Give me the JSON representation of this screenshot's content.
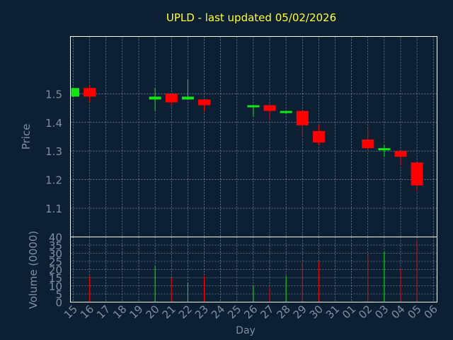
{
  "chart_data": [
    {
      "type": "candlestick",
      "title": "UPLD - last updated 05/02/2026",
      "ylabel": "Price",
      "xlabel": "",
      "ylim": [
        1.0,
        1.7
      ],
      "yticks": [
        1.1,
        1.2,
        1.3,
        1.4,
        1.5
      ],
      "grid": true,
      "categories": [
        "15",
        "16",
        "17",
        "18",
        "19",
        "20",
        "21",
        "22",
        "23",
        "24",
        "25",
        "26",
        "27",
        "28",
        "29",
        "30",
        "31",
        "01",
        "02",
        "03",
        "04",
        "05",
        "06"
      ],
      "candles": [
        {
          "day": "15",
          "open": 1.49,
          "high": 1.52,
          "low": 1.49,
          "close": 1.52,
          "dir": "up"
        },
        {
          "day": "16",
          "open": 1.52,
          "high": 1.53,
          "low": 1.47,
          "close": 1.49,
          "dir": "down"
        },
        {
          "day": "20",
          "open": 1.48,
          "high": 1.52,
          "low": 1.44,
          "close": 1.49,
          "dir": "up"
        },
        {
          "day": "21",
          "open": 1.5,
          "high": 1.5,
          "low": 1.46,
          "close": 1.47,
          "dir": "down"
        },
        {
          "day": "22",
          "open": 1.48,
          "high": 1.55,
          "low": 1.48,
          "close": 1.49,
          "dir": "up"
        },
        {
          "day": "23",
          "open": 1.48,
          "high": 1.48,
          "low": 1.44,
          "close": 1.46,
          "dir": "down"
        },
        {
          "day": "26",
          "open": 1.46,
          "high": 1.46,
          "low": 1.42,
          "close": 1.46,
          "dir": "up"
        },
        {
          "day": "27",
          "open": 1.46,
          "high": 1.46,
          "low": 1.41,
          "close": 1.44,
          "dir": "down"
        },
        {
          "day": "28",
          "open": 1.44,
          "high": 1.44,
          "low": 1.43,
          "close": 1.44,
          "dir": "up"
        },
        {
          "day": "29",
          "open": 1.44,
          "high": 1.44,
          "low": 1.35,
          "close": 1.39,
          "dir": "down"
        },
        {
          "day": "30",
          "open": 1.37,
          "high": 1.39,
          "low": 1.32,
          "close": 1.33,
          "dir": "down"
        },
        {
          "day": "02",
          "open": 1.34,
          "high": 1.38,
          "low": 1.3,
          "close": 1.31,
          "dir": "down"
        },
        {
          "day": "03",
          "open": 1.31,
          "high": 1.32,
          "low": 1.28,
          "close": 1.31,
          "dir": "up"
        },
        {
          "day": "04",
          "open": 1.3,
          "high": 1.3,
          "low": 1.25,
          "close": 1.28,
          "dir": "down"
        },
        {
          "day": "05",
          "open": 1.26,
          "high": 1.26,
          "low": 1.16,
          "close": 1.18,
          "dir": "down"
        }
      ]
    },
    {
      "type": "bar",
      "ylabel": "Volume (0000)",
      "xlabel": "Day",
      "ylim": [
        0,
        40
      ],
      "yticks": [
        0,
        5,
        10,
        15,
        20,
        25,
        30,
        35,
        40
      ],
      "grid": true,
      "categories": [
        "15",
        "16",
        "17",
        "18",
        "19",
        "20",
        "21",
        "22",
        "23",
        "24",
        "25",
        "26",
        "27",
        "28",
        "29",
        "30",
        "31",
        "01",
        "02",
        "03",
        "04",
        "05",
        "06"
      ],
      "bars": [
        {
          "day": "16",
          "value": 16,
          "dir": "down"
        },
        {
          "day": "20",
          "value": 22,
          "dir": "up"
        },
        {
          "day": "21",
          "value": 15,
          "dir": "down"
        },
        {
          "day": "22",
          "value": 12,
          "dir": "up"
        },
        {
          "day": "23",
          "value": 16,
          "dir": "down"
        },
        {
          "day": "26",
          "value": 10,
          "dir": "up"
        },
        {
          "day": "27",
          "value": 9,
          "dir": "down"
        },
        {
          "day": "28",
          "value": 16,
          "dir": "up"
        },
        {
          "day": "29",
          "value": 24,
          "dir": "down"
        },
        {
          "day": "30",
          "value": 25,
          "dir": "down"
        },
        {
          "day": "02",
          "value": 29,
          "dir": "down"
        },
        {
          "day": "03",
          "value": 31,
          "dir": "up"
        },
        {
          "day": "04",
          "value": 21,
          "dir": "down"
        },
        {
          "day": "05",
          "value": 38,
          "dir": "down"
        }
      ]
    }
  ],
  "colors": {
    "background": "#0c1f33",
    "plot_border": "#ffffff",
    "grid": "#9aa7b4",
    "title": "#ffff33",
    "axis_label": "#7f8fa3",
    "tick_label": "#7f8fa3",
    "up": "#14e614",
    "down": "#ff0000"
  }
}
